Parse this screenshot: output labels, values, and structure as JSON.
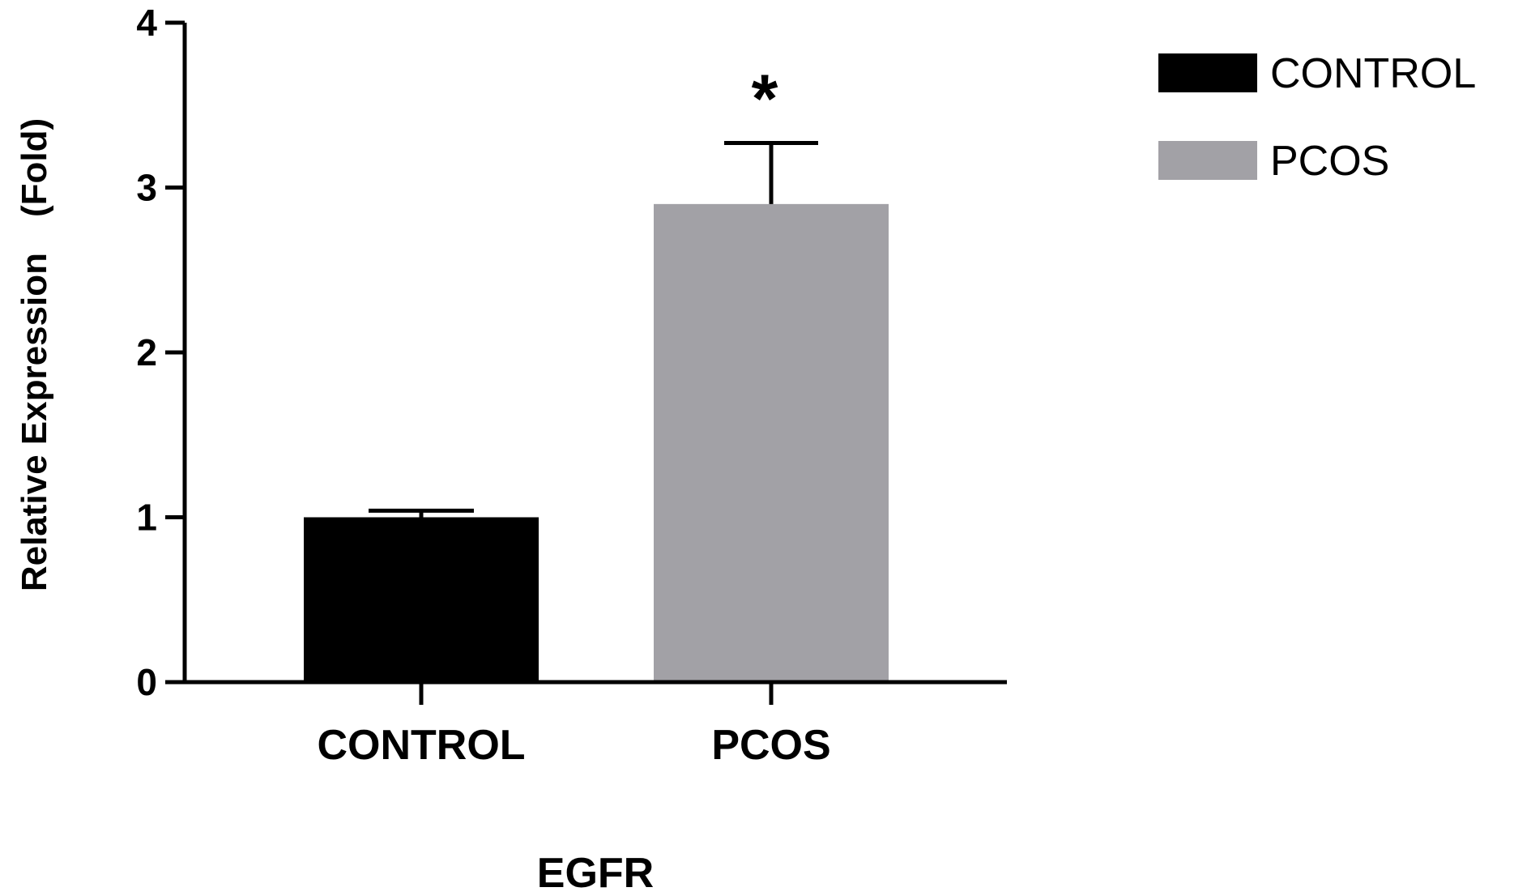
{
  "chart_data": {
    "type": "bar",
    "categories": [
      "CONTROL",
      "PCOS"
    ],
    "values": [
      1.0,
      2.9
    ],
    "error_upper": [
      0.04,
      0.37
    ],
    "significance": [
      "",
      "*"
    ],
    "colors": [
      "#000000",
      "#a2a1a6"
    ],
    "xlabel": "EGFR",
    "ylabel": "Relative Expression　(Fold)",
    "ylim": [
      0,
      4
    ],
    "yticks": [
      0,
      1,
      2,
      3,
      4
    ],
    "legend": {
      "placement": "top-right",
      "entries": [
        {
          "label": "CONTROL",
          "color": "#000000"
        },
        {
          "label": "PCOS",
          "color": "#a2a1a6"
        }
      ]
    }
  }
}
